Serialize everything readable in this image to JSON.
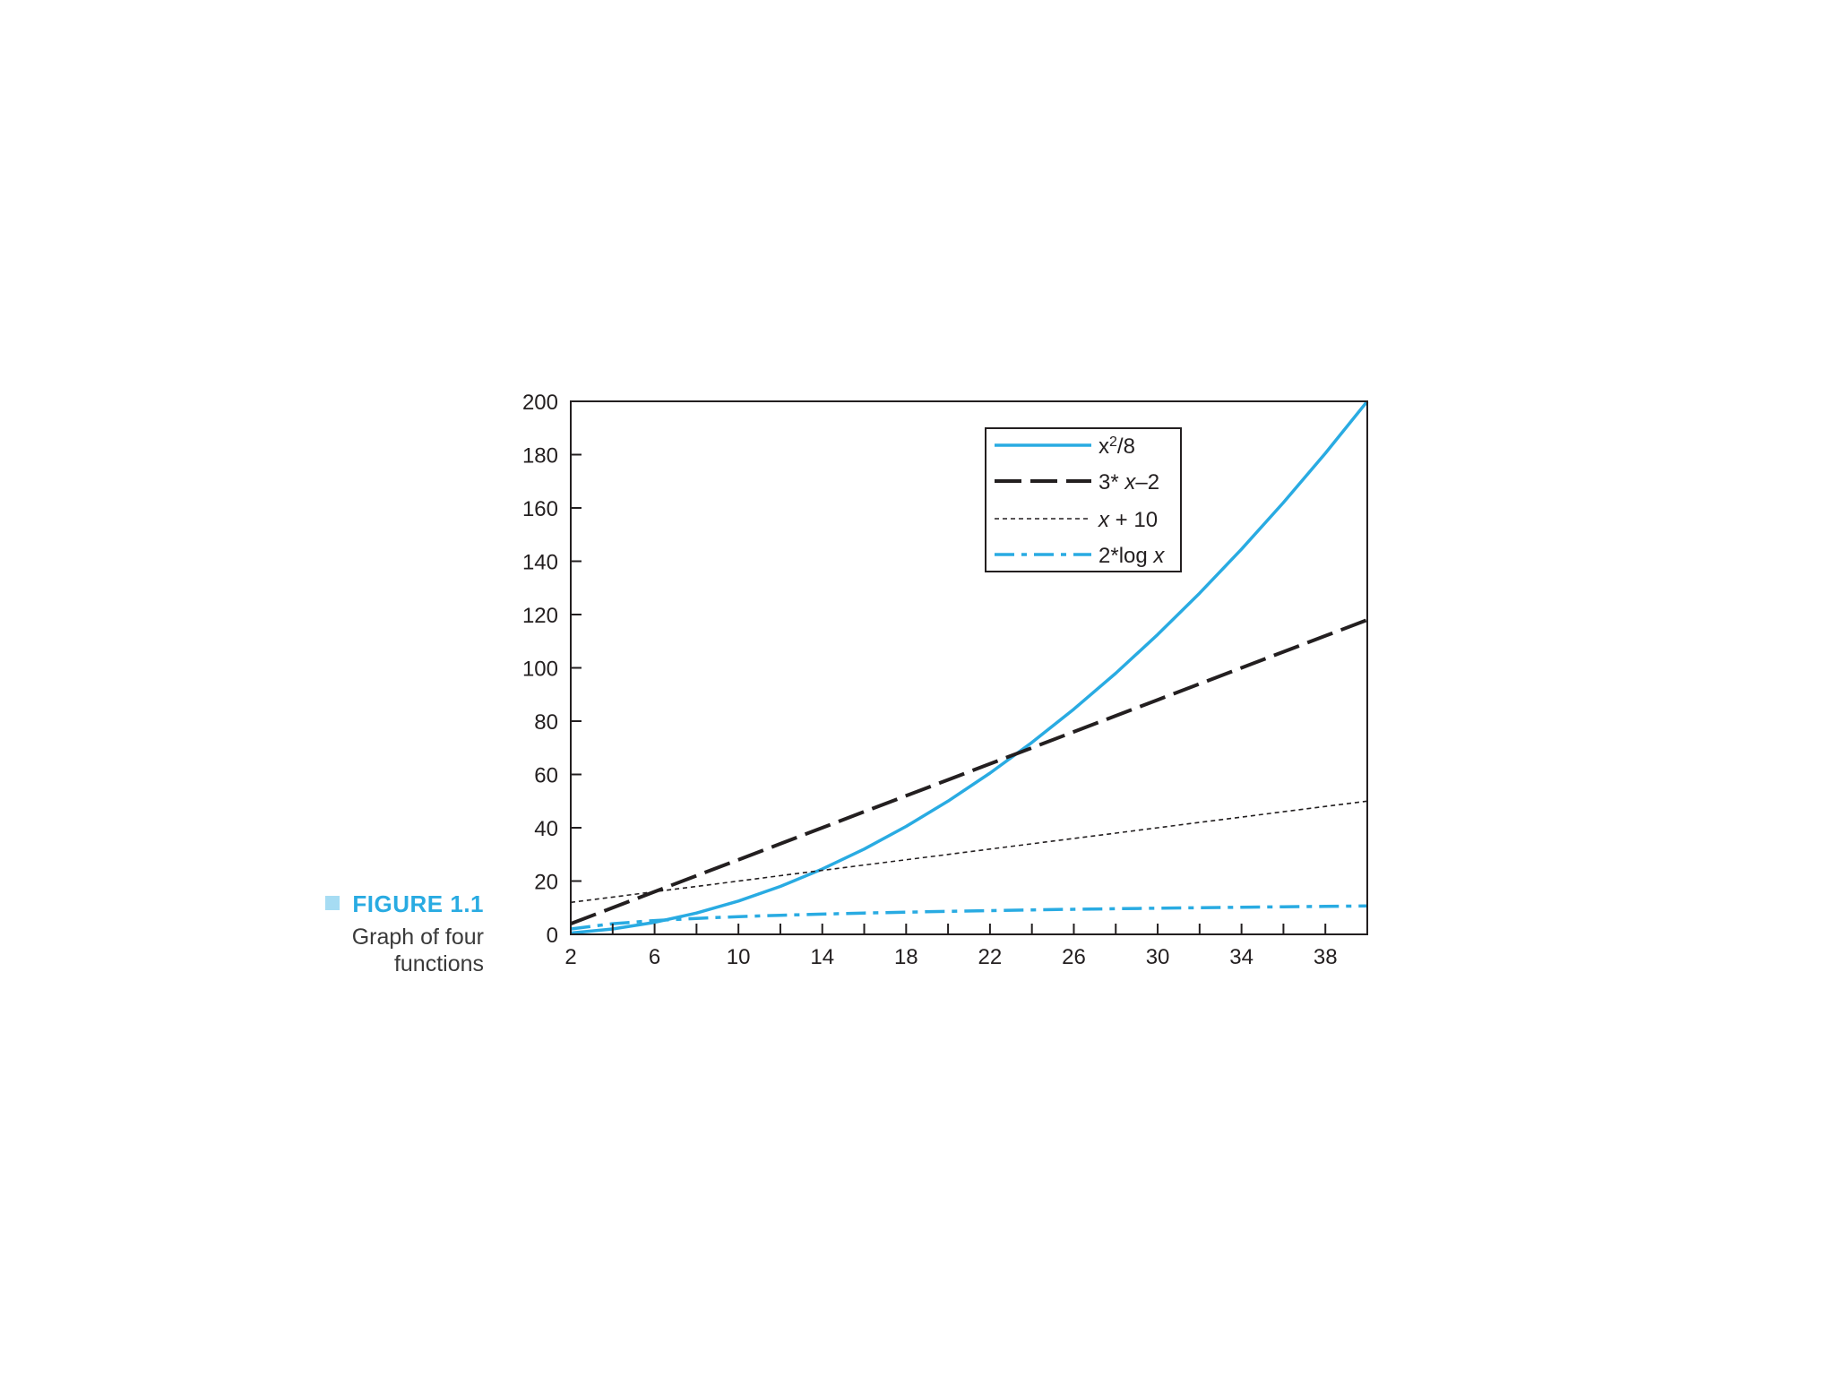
{
  "caption": {
    "figure_label": "FIGURE 1.1",
    "description": "Graph of four functions"
  },
  "colors": {
    "accent": "#29abe2",
    "dark": "#231f20",
    "caption_square": "#a6dcf3"
  },
  "chart_data": {
    "type": "line",
    "title": "",
    "xlabel": "",
    "ylabel": "",
    "xlim": [
      2,
      40
    ],
    "ylim": [
      0,
      200
    ],
    "x_ticks": [
      2,
      6,
      10,
      14,
      18,
      22,
      26,
      30,
      34,
      38
    ],
    "y_ticks": [
      0,
      20,
      40,
      60,
      80,
      100,
      120,
      140,
      160,
      180,
      200
    ],
    "grid": false,
    "legend_position": "top-right",
    "x": [
      2,
      4,
      6,
      8,
      10,
      12,
      14,
      16,
      18,
      20,
      22,
      24,
      26,
      28,
      30,
      32,
      34,
      36,
      38,
      40
    ],
    "series": [
      {
        "name": "x²/8",
        "legend_base": "x",
        "legend_sup": "2",
        "legend_tail": "/8",
        "style": "solid",
        "color": "#29abe2",
        "values": [
          0.5,
          2,
          4.5,
          8,
          12.5,
          18,
          24.5,
          32,
          40.5,
          50,
          60.5,
          72,
          84.5,
          98,
          112.5,
          128,
          144.5,
          162,
          180.5,
          200
        ]
      },
      {
        "name": "3* x–2",
        "legend_prefix": "3* ",
        "legend_var": "x",
        "legend_suffix": "–2",
        "style": "longdash",
        "color": "#231f20",
        "values": [
          4,
          10,
          16,
          22,
          28,
          34,
          40,
          46,
          52,
          58,
          64,
          70,
          76,
          82,
          88,
          94,
          100,
          106,
          112,
          118
        ]
      },
      {
        "name": "x + 10",
        "legend_prefix": "",
        "legend_var": "x",
        "legend_suffix": " + 10",
        "style": "dotted",
        "color": "#231f20",
        "values": [
          12,
          14,
          16,
          18,
          20,
          22,
          24,
          26,
          28,
          30,
          32,
          34,
          36,
          38,
          40,
          42,
          44,
          46,
          48,
          50
        ]
      },
      {
        "name": "2*log x",
        "legend_prefix": "2*log ",
        "legend_var": "x",
        "legend_suffix": "",
        "style": "dashdot",
        "color": "#29abe2",
        "values": [
          2,
          4,
          5.17,
          6,
          6.64,
          7.17,
          7.61,
          8,
          8.34,
          8.64,
          8.92,
          9.17,
          9.4,
          9.61,
          9.81,
          10,
          10.17,
          10.34,
          10.49,
          10.64
        ]
      }
    ]
  }
}
